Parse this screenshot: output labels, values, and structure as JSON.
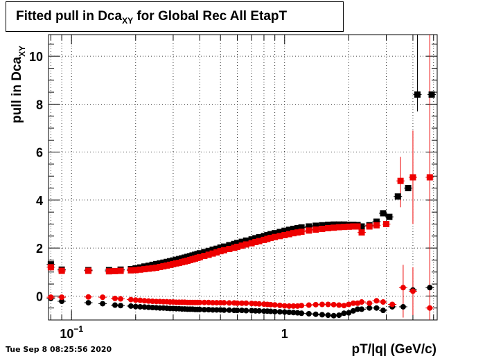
{
  "title": {
    "prefix": "Fitted pull in Dca",
    "subscript": "XY",
    "suffix": " for Global Rec All EtapT"
  },
  "footer": {
    "timestamp": "Tue Sep  8 08:25:56 2020"
  },
  "chart_data": {
    "type": "scatter",
    "xscale": "log",
    "xlim": [
      0.078,
      5.2
    ],
    "ylim": [
      -1.0,
      10.9
    ],
    "grid": true,
    "xlabel": "pT/|q| (GeV/c)",
    "ylabel": {
      "main": "pull in Dca",
      "sub": "XY"
    },
    "x_ticks": [
      {
        "value": 0.1,
        "label": "10",
        "exponent": "−1"
      },
      {
        "value": 1,
        "label": "1"
      }
    ],
    "y_ticks": [
      0,
      2,
      4,
      6,
      8,
      10
    ],
    "series": [
      {
        "color": "#000000",
        "marker": "square",
        "x": [
          0.08,
          0.09,
          0.12,
          0.15,
          0.17,
          0.19,
          0.2,
          0.21,
          0.22,
          0.23,
          0.24,
          0.25,
          0.26,
          0.27,
          0.28,
          0.29,
          0.3,
          0.31,
          0.32,
          0.33,
          0.34,
          0.35,
          0.36,
          0.37,
          0.38,
          0.39,
          0.4,
          0.42,
          0.44,
          0.46,
          0.48,
          0.5,
          0.52,
          0.55,
          0.58,
          0.6,
          0.63,
          0.66,
          0.7,
          0.73,
          0.76,
          0.8,
          0.83,
          0.86,
          0.9,
          0.95,
          1.0,
          1.05,
          1.1,
          1.15,
          1.2,
          1.3,
          1.4,
          1.5,
          1.6,
          1.7,
          1.8,
          1.9,
          2.0,
          2.1,
          2.2,
          2.3,
          2.5,
          2.7,
          2.9,
          3.1,
          3.4,
          3.8,
          4.2,
          4.9
        ],
        "y": [
          1.32,
          1.1,
          1.08,
          1.08,
          1.1,
          1.12,
          1.15,
          1.19,
          1.23,
          1.26,
          1.3,
          1.33,
          1.36,
          1.39,
          1.42,
          1.45,
          1.48,
          1.51,
          1.54,
          1.57,
          1.6,
          1.63,
          1.66,
          1.69,
          1.72,
          1.75,
          1.78,
          1.83,
          1.88,
          1.93,
          1.97,
          2.02,
          2.06,
          2.12,
          2.17,
          2.21,
          2.26,
          2.31,
          2.36,
          2.41,
          2.45,
          2.5,
          2.54,
          2.58,
          2.62,
          2.67,
          2.72,
          2.76,
          2.8,
          2.83,
          2.86,
          2.9,
          2.93,
          2.95,
          2.97,
          2.98,
          2.98,
          2.98,
          2.97,
          2.97,
          2.96,
          2.9,
          2.95,
          3.1,
          3.45,
          3.3,
          4.15,
          4.5,
          8.4,
          8.4
        ]
      },
      {
        "color": "#ee0000",
        "marker": "square",
        "x": [
          0.08,
          0.09,
          0.12,
          0.15,
          0.16,
          0.17,
          0.19,
          0.2,
          0.21,
          0.22,
          0.23,
          0.24,
          0.25,
          0.26,
          0.27,
          0.28,
          0.29,
          0.3,
          0.31,
          0.32,
          0.33,
          0.34,
          0.35,
          0.36,
          0.37,
          0.38,
          0.39,
          0.4,
          0.42,
          0.44,
          0.46,
          0.48,
          0.5,
          0.52,
          0.55,
          0.58,
          0.6,
          0.63,
          0.66,
          0.7,
          0.73,
          0.76,
          0.8,
          0.83,
          0.86,
          0.9,
          0.95,
          1.0,
          1.05,
          1.1,
          1.15,
          1.2,
          1.3,
          1.4,
          1.5,
          1.6,
          1.7,
          1.8,
          1.9,
          2.0,
          2.1,
          2.2,
          2.3,
          2.5,
          2.7,
          3.0,
          3.5,
          4.0,
          4.8
        ],
        "y": [
          1.2,
          1.05,
          1.05,
          1.03,
          1.04,
          1.05,
          1.07,
          1.08,
          1.1,
          1.12,
          1.14,
          1.16,
          1.18,
          1.21,
          1.24,
          1.27,
          1.3,
          1.33,
          1.36,
          1.38,
          1.41,
          1.44,
          1.47,
          1.5,
          1.53,
          1.56,
          1.59,
          1.62,
          1.67,
          1.72,
          1.77,
          1.82,
          1.87,
          1.91,
          1.96,
          2.01,
          2.05,
          2.1,
          2.15,
          2.2,
          2.25,
          2.29,
          2.34,
          2.38,
          2.42,
          2.46,
          2.5,
          2.54,
          2.58,
          2.62,
          2.65,
          2.68,
          2.73,
          2.77,
          2.8,
          2.83,
          2.85,
          2.87,
          2.88,
          2.89,
          2.9,
          2.9,
          2.65,
          2.9,
          2.95,
          3.0,
          4.8,
          4.95,
          4.95
        ]
      },
      {
        "color": "#000000",
        "marker": "circle",
        "x": [
          0.08,
          0.09,
          0.12,
          0.14,
          0.16,
          0.17,
          0.19,
          0.2,
          0.21,
          0.22,
          0.23,
          0.24,
          0.25,
          0.26,
          0.27,
          0.28,
          0.29,
          0.3,
          0.31,
          0.32,
          0.33,
          0.34,
          0.35,
          0.36,
          0.37,
          0.38,
          0.39,
          0.4,
          0.42,
          0.44,
          0.46,
          0.48,
          0.5,
          0.52,
          0.55,
          0.58,
          0.6,
          0.63,
          0.66,
          0.7,
          0.73,
          0.76,
          0.8,
          0.83,
          0.86,
          0.9,
          0.95,
          1.0,
          1.05,
          1.1,
          1.15,
          1.2,
          1.3,
          1.4,
          1.5,
          1.6,
          1.7,
          1.8,
          1.9,
          2.0,
          2.1,
          2.2,
          2.3,
          2.5,
          2.7,
          2.9,
          3.2,
          3.6,
          4.0,
          4.8
        ],
        "y": [
          -0.1,
          -0.22,
          -0.28,
          -0.32,
          -0.38,
          -0.4,
          -0.42,
          -0.44,
          -0.45,
          -0.46,
          -0.47,
          -0.48,
          -0.49,
          -0.5,
          -0.5,
          -0.51,
          -0.52,
          -0.52,
          -0.53,
          -0.53,
          -0.54,
          -0.54,
          -0.55,
          -0.55,
          -0.55,
          -0.56,
          -0.56,
          -0.56,
          -0.57,
          -0.57,
          -0.58,
          -0.58,
          -0.58,
          -0.59,
          -0.59,
          -0.6,
          -0.6,
          -0.6,
          -0.61,
          -0.61,
          -0.62,
          -0.62,
          -0.63,
          -0.63,
          -0.64,
          -0.65,
          -0.66,
          -0.67,
          -0.68,
          -0.69,
          -0.7,
          -0.72,
          -0.74,
          -0.76,
          -0.78,
          -0.8,
          -0.82,
          -0.8,
          -0.72,
          -0.7,
          -0.62,
          -0.55,
          -0.55,
          -0.5,
          -0.5,
          -0.6,
          -0.45,
          -0.45,
          0.25,
          0.35
        ]
      },
      {
        "color": "#ee0000",
        "marker": "circle",
        "x": [
          0.08,
          0.09,
          0.12,
          0.14,
          0.16,
          0.17,
          0.19,
          0.2,
          0.21,
          0.22,
          0.23,
          0.24,
          0.25,
          0.26,
          0.27,
          0.28,
          0.29,
          0.3,
          0.31,
          0.32,
          0.33,
          0.34,
          0.35,
          0.36,
          0.37,
          0.38,
          0.39,
          0.4,
          0.42,
          0.44,
          0.46,
          0.48,
          0.5,
          0.52,
          0.55,
          0.58,
          0.6,
          0.63,
          0.66,
          0.7,
          0.73,
          0.76,
          0.8,
          0.83,
          0.86,
          0.9,
          0.95,
          1.0,
          1.05,
          1.1,
          1.15,
          1.2,
          1.3,
          1.4,
          1.5,
          1.6,
          1.7,
          1.8,
          1.9,
          2.0,
          2.1,
          2.2,
          2.3,
          2.5,
          2.7,
          2.9,
          3.2,
          3.6,
          4.0,
          4.8
        ],
        "y": [
          -0.05,
          -0.05,
          -0.04,
          -0.05,
          -0.1,
          -0.12,
          -0.15,
          -0.17,
          -0.18,
          -0.2,
          -0.21,
          -0.22,
          -0.23,
          -0.23,
          -0.24,
          -0.24,
          -0.25,
          -0.25,
          -0.26,
          -0.26,
          -0.26,
          -0.26,
          -0.27,
          -0.27,
          -0.27,
          -0.27,
          -0.27,
          -0.27,
          -0.27,
          -0.27,
          -0.28,
          -0.28,
          -0.28,
          -0.28,
          -0.29,
          -0.29,
          -0.3,
          -0.3,
          -0.3,
          -0.31,
          -0.32,
          -0.33,
          -0.34,
          -0.35,
          -0.36,
          -0.37,
          -0.39,
          -0.41,
          -0.42,
          -0.42,
          -0.42,
          -0.4,
          -0.38,
          -0.36,
          -0.35,
          -0.35,
          -0.36,
          -0.38,
          -0.4,
          -0.35,
          -0.3,
          -0.3,
          -0.25,
          -0.3,
          -0.2,
          -0.25,
          -0.35,
          0.35,
          0.2,
          -0.5
        ]
      }
    ],
    "error_bars": [
      {
        "color": "#ee0000",
        "x": 3.5,
        "ylow": 3.7,
        "yhigh": 5.8
      },
      {
        "color": "#ee0000",
        "x": 4.0,
        "ylow": 3.0,
        "yhigh": 6.9
      },
      {
        "color": "#ee0000",
        "x": 4.8,
        "ylow": -1.0,
        "yhigh": 10.9
      },
      {
        "color": "#000000",
        "x": 4.2,
        "ylow": 7.7,
        "yhigh": 10.9
      },
      {
        "color": "#ee0000",
        "x": 3.6,
        "ylow": -0.9,
        "yhigh": 1.3
      },
      {
        "color": "#ee0000",
        "x": 4.0,
        "ylow": -0.8,
        "yhigh": 1.2
      }
    ]
  }
}
